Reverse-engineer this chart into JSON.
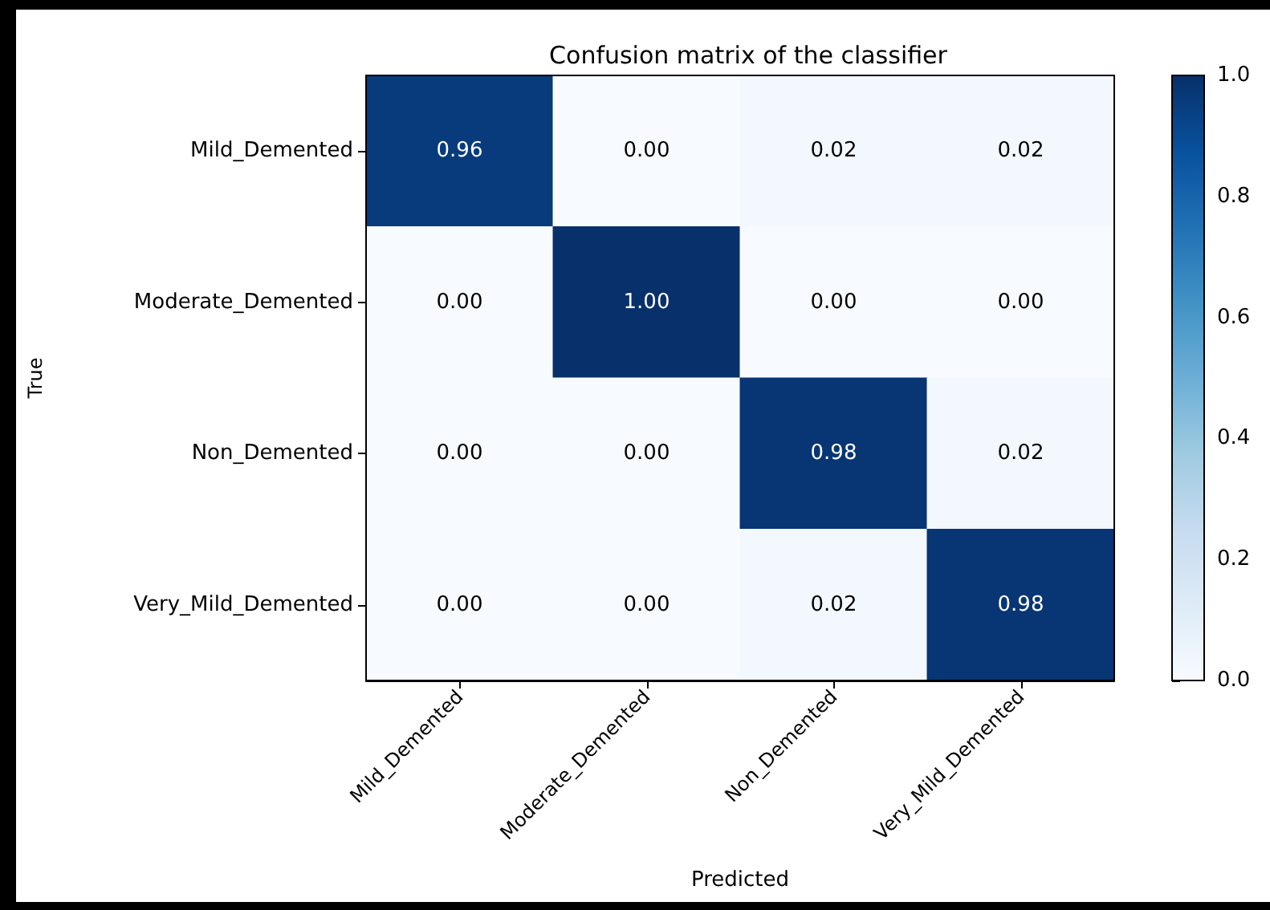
{
  "chart_data": {
    "type": "heatmap",
    "title": "Confusion matrix of the classifier",
    "xlabel": "Predicted",
    "ylabel": "True",
    "categories": [
      "Mild_Demented",
      "Moderate_Demented",
      "Non_Demented",
      "Very_Mild_Demented"
    ],
    "y_categories": [
      "Mild_Demented",
      "Moderate_Demented",
      "Non_Demented",
      "Very_Mild_Demented"
    ],
    "cells": [
      [
        0.96,
        0,
        0.02,
        0.02
      ],
      [
        0,
        1,
        0,
        0
      ],
      [
        0,
        0,
        0.98,
        0.02
      ],
      [
        0,
        0,
        0.02,
        0.98
      ]
    ],
    "cell_labels": [
      [
        "0.96",
        "0.00",
        "0.02",
        "0.02"
      ],
      [
        "0.00",
        "1.00",
        "0.00",
        "0.00"
      ],
      [
        "0.00",
        "0.00",
        "0.98",
        "0.02"
      ],
      [
        "0.00",
        "0.00",
        "0.02",
        "0.98"
      ]
    ],
    "clim": [
      0,
      1
    ],
    "cticks": [
      {
        "value": 0,
        "label": "0.0"
      },
      {
        "value": 0.2,
        "label": "0.2"
      },
      {
        "value": 0.4,
        "label": "0.4"
      },
      {
        "value": 0.6,
        "label": "0.6"
      },
      {
        "value": 0.8,
        "label": "0.8"
      },
      {
        "value": 1,
        "label": "1.0"
      }
    ]
  }
}
